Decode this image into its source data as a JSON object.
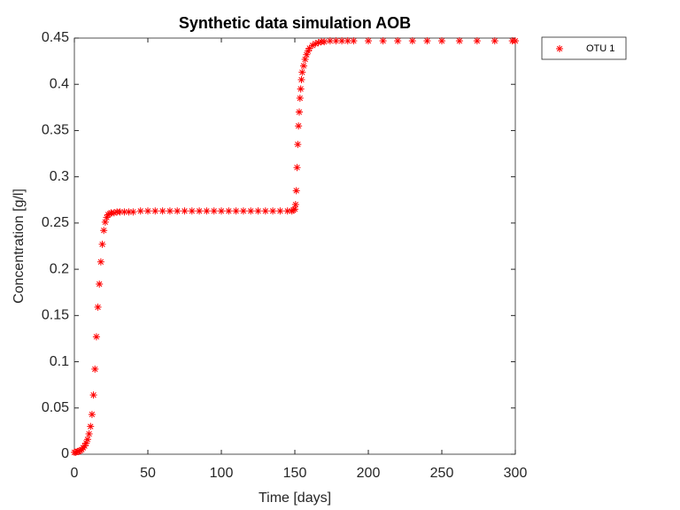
{
  "chart_data": {
    "type": "scatter",
    "title": "Synthetic data simulation AOB",
    "xlabel": "Time [days]",
    "ylabel": "Concentration [g/l]",
    "xlim": [
      0,
      300
    ],
    "xticks": [
      0,
      50,
      100,
      150,
      200,
      250,
      300
    ],
    "ylim": [
      0,
      0.45
    ],
    "yticks": [
      0,
      0.05,
      0.1,
      0.15,
      0.2,
      0.25,
      0.3,
      0.35,
      0.4,
      0.45
    ],
    "grid": false,
    "legend": "outside-top-right",
    "series": [
      {
        "name": "OTU 1",
        "color": "#ff0000",
        "marker": "*",
        "x": [
          0,
          1,
          2,
          3,
          4,
          5,
          6,
          7,
          8,
          9,
          10,
          11,
          12,
          13,
          14,
          15,
          16,
          17,
          18,
          19,
          20,
          21,
          22,
          23,
          24,
          25,
          27,
          29,
          31,
          34,
          37,
          40,
          45,
          50,
          55,
          60,
          65,
          70,
          75,
          80,
          85,
          90,
          95,
          100,
          105,
          110,
          115,
          120,
          125,
          130,
          135,
          140,
          145,
          148,
          149,
          150,
          150.5,
          151,
          151.5,
          152,
          152.5,
          153,
          153.5,
          154,
          154.5,
          155,
          156,
          157,
          158,
          159,
          160,
          162,
          164,
          166,
          168,
          170,
          174,
          178,
          182,
          186,
          190,
          200,
          210,
          220,
          230,
          240,
          250,
          262,
          274,
          286,
          298,
          300
        ],
        "values": [
          0.002,
          0.002,
          0.003,
          0.003,
          0.004,
          0.005,
          0.007,
          0.009,
          0.012,
          0.016,
          0.022,
          0.03,
          0.043,
          0.064,
          0.092,
          0.127,
          0.159,
          0.184,
          0.208,
          0.227,
          0.242,
          0.251,
          0.256,
          0.259,
          0.26,
          0.261,
          0.261,
          0.262,
          0.262,
          0.262,
          0.262,
          0.262,
          0.263,
          0.263,
          0.263,
          0.263,
          0.263,
          0.263,
          0.263,
          0.263,
          0.263,
          0.263,
          0.263,
          0.263,
          0.263,
          0.263,
          0.263,
          0.263,
          0.263,
          0.263,
          0.263,
          0.263,
          0.263,
          0.263,
          0.264,
          0.265,
          0.27,
          0.285,
          0.31,
          0.335,
          0.355,
          0.37,
          0.385,
          0.395,
          0.405,
          0.413,
          0.42,
          0.427,
          0.432,
          0.436,
          0.439,
          0.442,
          0.444,
          0.445,
          0.446,
          0.446,
          0.447,
          0.447,
          0.447,
          0.447,
          0.447,
          0.447,
          0.447,
          0.447,
          0.447,
          0.447,
          0.447,
          0.447,
          0.447,
          0.447,
          0.447,
          0.447
        ]
      }
    ]
  }
}
